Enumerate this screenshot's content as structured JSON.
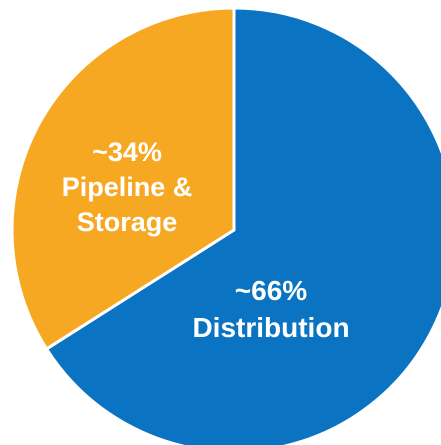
{
  "chart_data": {
    "type": "pie",
    "title": "",
    "start_angle_deg": 0,
    "direction": "clockwise",
    "slices": [
      {
        "label": "Distribution",
        "percent_text": "~66%",
        "value": 66,
        "color": "#0a74c2"
      },
      {
        "label_lines": [
          "Pipeline &",
          "Storage"
        ],
        "percent_text": "~34%",
        "value": 34,
        "color": "#f7a823"
      }
    ],
    "slice_border_color": "#ffffff"
  }
}
